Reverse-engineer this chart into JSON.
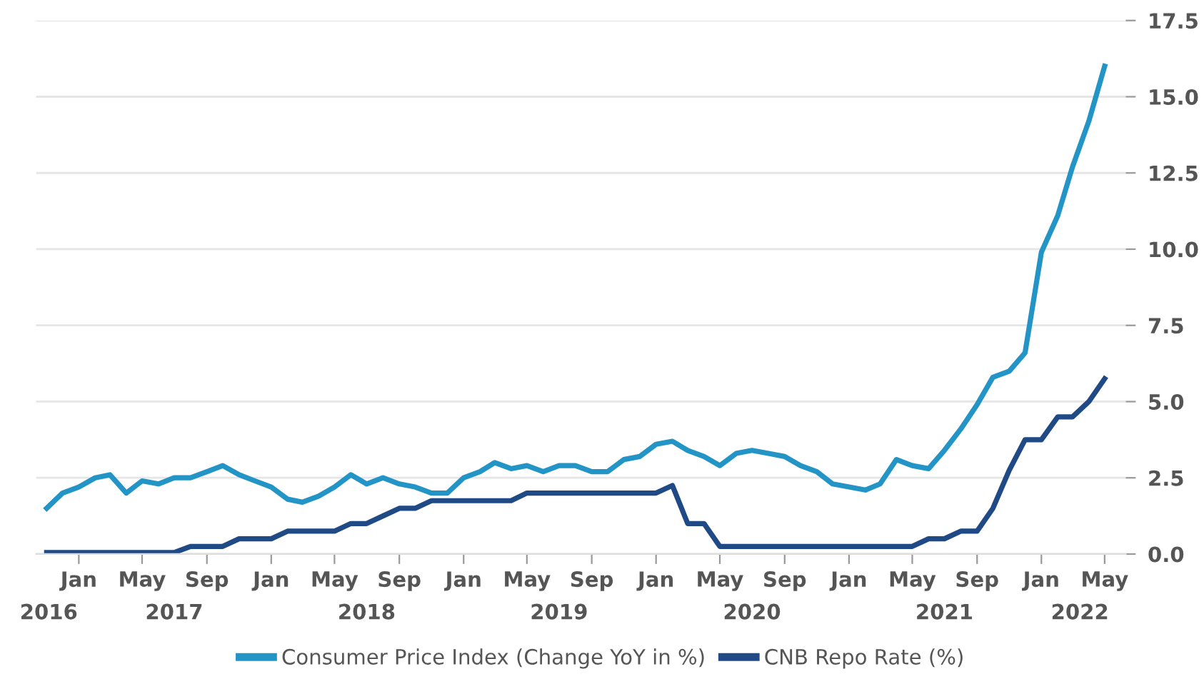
{
  "chart_data": {
    "type": "line",
    "x": [
      "2016-11",
      "2016-12",
      "2017-01",
      "2017-02",
      "2017-03",
      "2017-04",
      "2017-05",
      "2017-06",
      "2017-07",
      "2017-08",
      "2017-09",
      "2017-10",
      "2017-11",
      "2017-12",
      "2018-01",
      "2018-02",
      "2018-03",
      "2018-04",
      "2018-05",
      "2018-06",
      "2018-07",
      "2018-08",
      "2018-09",
      "2018-10",
      "2018-11",
      "2018-12",
      "2019-01",
      "2019-02",
      "2019-03",
      "2019-04",
      "2019-05",
      "2019-06",
      "2019-07",
      "2019-08",
      "2019-09",
      "2019-10",
      "2019-11",
      "2019-12",
      "2020-01",
      "2020-02",
      "2020-03",
      "2020-04",
      "2020-05",
      "2020-06",
      "2020-07",
      "2020-08",
      "2020-09",
      "2020-10",
      "2020-11",
      "2020-12",
      "2021-01",
      "2021-02",
      "2021-03",
      "2021-04",
      "2021-05",
      "2021-06",
      "2021-07",
      "2021-08",
      "2021-09",
      "2021-10",
      "2021-11",
      "2021-12",
      "2022-01",
      "2022-02",
      "2022-03",
      "2022-04",
      "2022-05"
    ],
    "series": [
      {
        "name": "Consumer Price Index (Change YoY in %)",
        "color": "#2394c6",
        "values": [
          1.5,
          2.0,
          2.2,
          2.5,
          2.6,
          2.0,
          2.4,
          2.3,
          2.5,
          2.5,
          2.7,
          2.9,
          2.6,
          2.4,
          2.2,
          1.8,
          1.7,
          1.9,
          2.2,
          2.6,
          2.3,
          2.5,
          2.3,
          2.2,
          2.0,
          2.0,
          2.5,
          2.7,
          3.0,
          2.8,
          2.9,
          2.7,
          2.9,
          2.9,
          2.7,
          2.7,
          3.1,
          3.2,
          3.6,
          3.7,
          3.4,
          3.2,
          2.9,
          3.3,
          3.4,
          3.3,
          3.2,
          2.9,
          2.7,
          2.3,
          2.2,
          2.1,
          2.3,
          3.1,
          2.9,
          2.8,
          3.4,
          4.1,
          4.9,
          5.8,
          6.0,
          6.6,
          9.9,
          11.1,
          12.7,
          14.2,
          16.0
        ]
      },
      {
        "name": "CNB Repo Rate (%)",
        "color": "#1f4a85",
        "values": [
          0.05,
          0.05,
          0.05,
          0.05,
          0.05,
          0.05,
          0.05,
          0.05,
          0.05,
          0.25,
          0.25,
          0.25,
          0.5,
          0.5,
          0.5,
          0.75,
          0.75,
          0.75,
          0.75,
          1.0,
          1.0,
          1.25,
          1.5,
          1.5,
          1.75,
          1.75,
          1.75,
          1.75,
          1.75,
          1.75,
          2.0,
          2.0,
          2.0,
          2.0,
          2.0,
          2.0,
          2.0,
          2.0,
          2.0,
          2.25,
          1.0,
          1.0,
          0.25,
          0.25,
          0.25,
          0.25,
          0.25,
          0.25,
          0.25,
          0.25,
          0.25,
          0.25,
          0.25,
          0.25,
          0.25,
          0.5,
          0.5,
          0.75,
          0.75,
          1.5,
          2.75,
          3.75,
          3.75,
          4.5,
          4.5,
          5.0,
          5.75
        ]
      }
    ],
    "xlim": [
      "2016-10-12",
      "2022-06-10"
    ],
    "x2lim": [
      "2016-10-12",
      "2022-06-10"
    ],
    "x2ticks": [
      {
        "value": "2016-11-05",
        "label": "2016"
      },
      {
        "value": "2017-07-01",
        "label": "2017"
      },
      {
        "value": "2018-07-01",
        "label": "2018"
      },
      {
        "value": "2019-07-01",
        "label": "2019"
      },
      {
        "value": "2020-07-01",
        "label": "2020"
      },
      {
        "value": "2021-07-01",
        "label": "2021"
      },
      {
        "value": "2022-03-15",
        "label": "2022"
      }
    ],
    "xticks": [
      {
        "value": "2017-01",
        "label": "Jan"
      },
      {
        "value": "2017-05",
        "label": "May"
      },
      {
        "value": "2017-09",
        "label": "Sep"
      },
      {
        "value": "2018-01",
        "label": "Jan"
      },
      {
        "value": "2018-05",
        "label": "May"
      },
      {
        "value": "2018-09",
        "label": "Sep"
      },
      {
        "value": "2019-01",
        "label": "Jan"
      },
      {
        "value": "2019-05",
        "label": "May"
      },
      {
        "value": "2019-09",
        "label": "Sep"
      },
      {
        "value": "2020-01",
        "label": "Jan"
      },
      {
        "value": "2020-05",
        "label": "May"
      },
      {
        "value": "2020-09",
        "label": "Sep"
      },
      {
        "value": "2021-01",
        "label": "Jan"
      },
      {
        "value": "2021-05",
        "label": "May"
      },
      {
        "value": "2021-09",
        "label": "Sep"
      },
      {
        "value": "2022-01",
        "label": "Jan"
      },
      {
        "value": "2022-05",
        "label": "May"
      }
    ],
    "ylim": [
      0,
      17.5
    ],
    "yticks": [
      {
        "value": 0,
        "label": "0.0"
      },
      {
        "value": 2.5,
        "label": "2.5"
      },
      {
        "value": 5,
        "label": "5.0"
      },
      {
        "value": 7.5,
        "label": "7.5"
      },
      {
        "value": 10,
        "label": "10.0"
      },
      {
        "value": 12.5,
        "label": "12.5"
      },
      {
        "value": 15,
        "label": "15.0"
      },
      {
        "value": 17.5,
        "label": "17.5"
      }
    ],
    "grid": "y",
    "legend": "bottom",
    "marker": "none",
    "line_style": "solid"
  }
}
